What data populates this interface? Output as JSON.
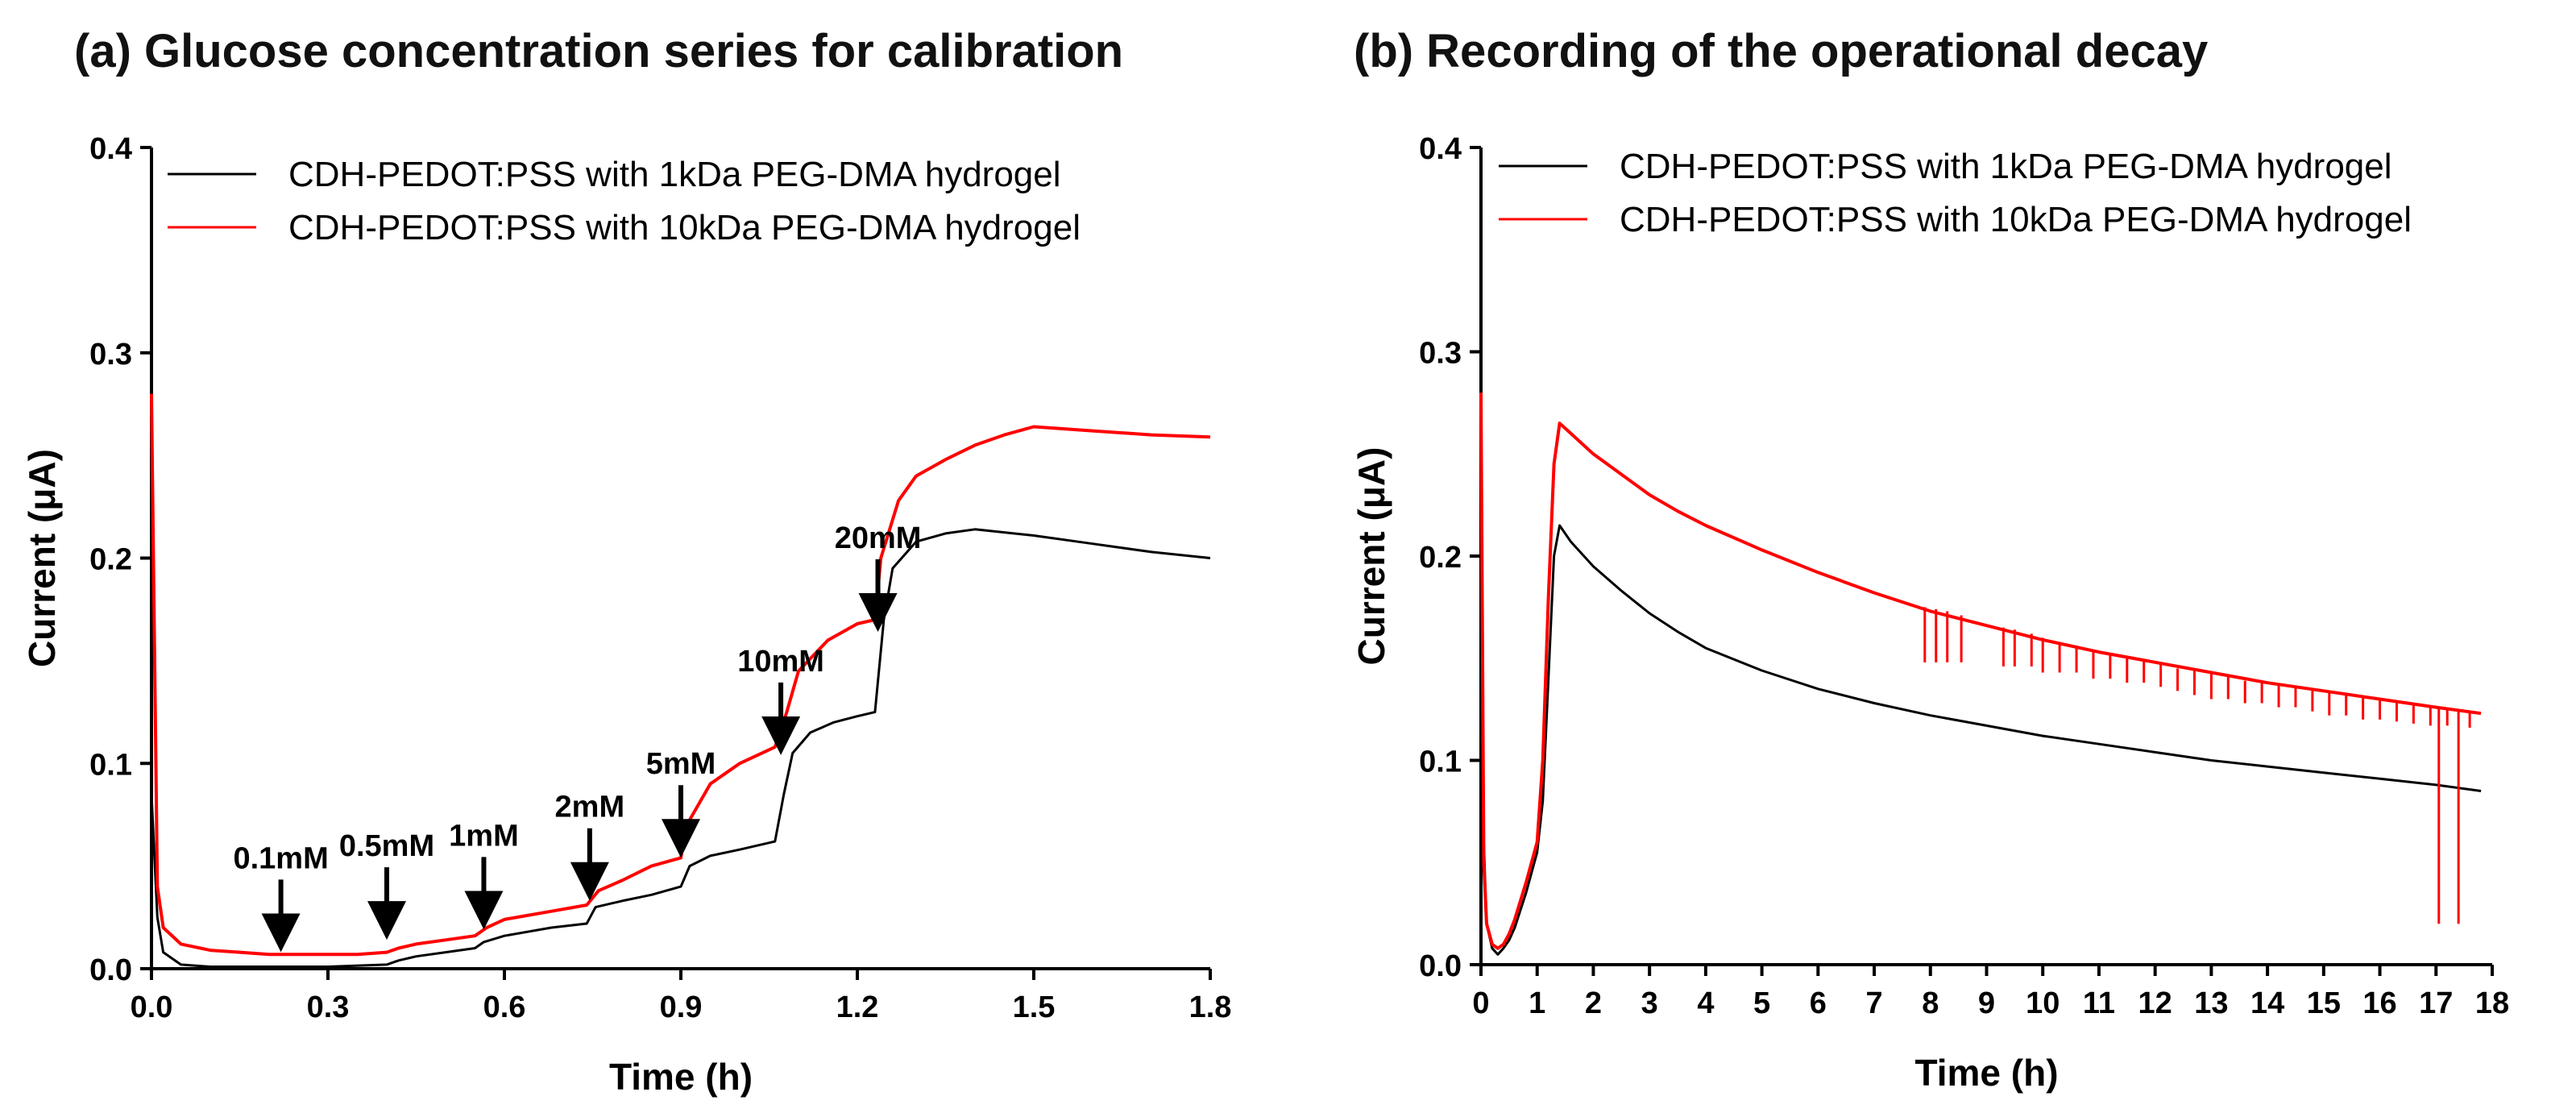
{
  "chart_data": [
    {
      "type": "line",
      "title": "(a) Glucose concentration series for calibration",
      "xlabel": "Time (h)",
      "ylabel": "Current (μA)",
      "xlim": [
        0,
        1.8
      ],
      "ylim": [
        0,
        0.4
      ],
      "xticks": [
        "0.0",
        "0.3",
        "0.6",
        "0.9",
        "1.2",
        "1.5",
        "1.8"
      ],
      "yticks": [
        "0.0",
        "0.1",
        "0.2",
        "0.3",
        "0.4"
      ],
      "legend_position": "top",
      "series": [
        {
          "name": "CDH-PEDOT:PSS with 1kDa PEG-DMA hydrogel",
          "color": "#000000",
          "x": [
            0.0,
            0.01,
            0.02,
            0.05,
            0.1,
            0.2,
            0.3,
            0.4,
            0.42,
            0.45,
            0.5,
            0.55,
            0.565,
            0.6,
            0.68,
            0.74,
            0.755,
            0.8,
            0.85,
            0.9,
            0.915,
            0.95,
            1.0,
            1.06,
            1.075,
            1.09,
            1.12,
            1.16,
            1.2,
            1.23,
            1.245,
            1.26,
            1.3,
            1.35,
            1.4,
            1.5,
            1.6,
            1.7,
            1.8
          ],
          "y": [
            0.085,
            0.025,
            0.008,
            0.002,
            0.001,
            0.001,
            0.001,
            0.002,
            0.004,
            0.006,
            0.008,
            0.01,
            0.013,
            0.016,
            0.02,
            0.022,
            0.03,
            0.033,
            0.036,
            0.04,
            0.05,
            0.055,
            0.058,
            0.062,
            0.085,
            0.105,
            0.115,
            0.12,
            0.123,
            0.125,
            0.17,
            0.195,
            0.208,
            0.212,
            0.214,
            0.211,
            0.207,
            0.203,
            0.2
          ]
        },
        {
          "name": "CDH-PEDOT:PSS with 10kDa PEG-DMA hydrogel",
          "color": "#ff0000",
          "x": [
            0.0,
            0.01,
            0.02,
            0.05,
            0.1,
            0.15,
            0.2,
            0.25,
            0.3,
            0.35,
            0.4,
            0.42,
            0.45,
            0.5,
            0.55,
            0.57,
            0.6,
            0.68,
            0.74,
            0.76,
            0.8,
            0.85,
            0.9,
            0.91,
            0.95,
            1.0,
            1.06,
            1.08,
            1.1,
            1.15,
            1.2,
            1.23,
            1.24,
            1.27,
            1.3,
            1.35,
            1.4,
            1.45,
            1.5,
            1.6,
            1.7,
            1.8
          ],
          "y": [
            0.28,
            0.04,
            0.02,
            0.012,
            0.009,
            0.008,
            0.007,
            0.007,
            0.007,
            0.007,
            0.008,
            0.01,
            0.012,
            0.014,
            0.016,
            0.02,
            0.024,
            0.028,
            0.031,
            0.038,
            0.043,
            0.05,
            0.054,
            0.07,
            0.09,
            0.1,
            0.108,
            0.125,
            0.145,
            0.16,
            0.168,
            0.17,
            0.2,
            0.228,
            0.24,
            0.248,
            0.255,
            0.26,
            0.264,
            0.262,
            0.26,
            0.259
          ]
        }
      ],
      "annotations": [
        {
          "label": "0.1mM",
          "x": 0.22,
          "y": 0.012
        },
        {
          "label": "0.5mM",
          "x": 0.4,
          "y": 0.018
        },
        {
          "label": "1mM",
          "x": 0.565,
          "y": 0.023
        },
        {
          "label": "2mM",
          "x": 0.745,
          "y": 0.037
        },
        {
          "label": "5mM",
          "x": 0.9,
          "y": 0.058
        },
        {
          "label": "10mM",
          "x": 1.07,
          "y": 0.108
        },
        {
          "label": "20mM",
          "x": 1.235,
          "y": 0.168
        }
      ]
    },
    {
      "type": "line",
      "title": "(b) Recording of the operational decay",
      "xlabel": "Time (h)",
      "ylabel": "Current (μA)",
      "xlim": [
        0,
        18
      ],
      "ylim": [
        0,
        0.4
      ],
      "xticks": [
        "0",
        "1",
        "2",
        "3",
        "4",
        "5",
        "6",
        "7",
        "8",
        "9",
        "10",
        "11",
        "12",
        "13",
        "14",
        "15",
        "16",
        "17",
        "18"
      ],
      "yticks": [
        "0.0",
        "0.1",
        "0.2",
        "0.3",
        "0.4"
      ],
      "legend_position": "top",
      "series": [
        {
          "name": "CDH-PEDOT:PSS with 1kDa PEG-DMA hydrogel",
          "color": "#000000",
          "x": [
            0.0,
            0.05,
            0.1,
            0.2,
            0.3,
            0.4,
            0.5,
            0.6,
            0.8,
            1.0,
            1.1,
            1.2,
            1.3,
            1.4,
            1.6,
            2.0,
            2.5,
            3.0,
            3.5,
            4.0,
            5.0,
            6.0,
            7.0,
            8.0,
            9.0,
            10.0,
            11.0,
            12.0,
            13.0,
            14.0,
            15.0,
            16.0,
            17.0,
            17.8
          ],
          "y": [
            0.25,
            0.06,
            0.02,
            0.008,
            0.005,
            0.008,
            0.012,
            0.018,
            0.035,
            0.055,
            0.08,
            0.14,
            0.2,
            0.215,
            0.207,
            0.195,
            0.183,
            0.172,
            0.163,
            0.155,
            0.144,
            0.135,
            0.128,
            0.122,
            0.117,
            0.112,
            0.108,
            0.104,
            0.1,
            0.097,
            0.094,
            0.091,
            0.088,
            0.085
          ]
        },
        {
          "name": "CDH-PEDOT:PSS with 10kDa PEG-DMA hydrogel",
          "color": "#ff0000",
          "x": [
            0.0,
            0.05,
            0.1,
            0.2,
            0.3,
            0.4,
            0.5,
            0.6,
            0.8,
            1.0,
            1.1,
            1.2,
            1.3,
            1.4,
            1.6,
            2.0,
            2.5,
            3.0,
            3.5,
            4.0,
            5.0,
            6.0,
            7.0,
            8.0,
            9.0,
            10.0,
            11.0,
            12.0,
            13.0,
            14.0,
            15.0,
            16.0,
            17.0,
            17.8
          ],
          "y": [
            0.28,
            0.05,
            0.02,
            0.01,
            0.008,
            0.01,
            0.015,
            0.022,
            0.04,
            0.06,
            0.1,
            0.18,
            0.245,
            0.265,
            0.26,
            0.25,
            0.24,
            0.23,
            0.222,
            0.215,
            0.203,
            0.192,
            0.182,
            0.173,
            0.166,
            0.159,
            0.153,
            0.148,
            0.143,
            0.138,
            0.134,
            0.13,
            0.126,
            0.123
          ]
        }
      ],
      "spikes": [
        {
          "x": 7.9,
          "y0": 0.175,
          "y1": 0.148
        },
        {
          "x": 8.1,
          "y0": 0.174,
          "y1": 0.148
        },
        {
          "x": 8.3,
          "y0": 0.173,
          "y1": 0.148
        },
        {
          "x": 8.55,
          "y0": 0.171,
          "y1": 0.148
        },
        {
          "x": 9.3,
          "y0": 0.165,
          "y1": 0.146
        },
        {
          "x": 9.5,
          "y0": 0.164,
          "y1": 0.146
        },
        {
          "x": 9.8,
          "y0": 0.162,
          "y1": 0.146
        },
        {
          "x": 10.0,
          "y0": 0.16,
          "y1": 0.143
        },
        {
          "x": 10.3,
          "y0": 0.158,
          "y1": 0.143
        },
        {
          "x": 10.6,
          "y0": 0.156,
          "y1": 0.143
        },
        {
          "x": 10.9,
          "y0": 0.154,
          "y1": 0.14
        },
        {
          "x": 11.2,
          "y0": 0.152,
          "y1": 0.14
        },
        {
          "x": 11.5,
          "y0": 0.15,
          "y1": 0.138
        },
        {
          "x": 11.8,
          "y0": 0.149,
          "y1": 0.138
        },
        {
          "x": 12.1,
          "y0": 0.147,
          "y1": 0.136
        },
        {
          "x": 12.4,
          "y0": 0.145,
          "y1": 0.134
        },
        {
          "x": 12.7,
          "y0": 0.144,
          "y1": 0.132
        },
        {
          "x": 13.0,
          "y0": 0.143,
          "y1": 0.13
        },
        {
          "x": 13.3,
          "y0": 0.141,
          "y1": 0.13
        },
        {
          "x": 13.6,
          "y0": 0.139,
          "y1": 0.128
        },
        {
          "x": 13.9,
          "y0": 0.138,
          "y1": 0.128
        },
        {
          "x": 14.2,
          "y0": 0.137,
          "y1": 0.126
        },
        {
          "x": 14.5,
          "y0": 0.136,
          "y1": 0.126
        },
        {
          "x": 14.8,
          "y0": 0.134,
          "y1": 0.124
        },
        {
          "x": 15.1,
          "y0": 0.133,
          "y1": 0.122
        },
        {
          "x": 15.4,
          "y0": 0.132,
          "y1": 0.122
        },
        {
          "x": 15.7,
          "y0": 0.131,
          "y1": 0.12
        },
        {
          "x": 16.0,
          "y0": 0.13,
          "y1": 0.12
        },
        {
          "x": 16.3,
          "y0": 0.129,
          "y1": 0.119
        },
        {
          "x": 16.6,
          "y0": 0.128,
          "y1": 0.118
        },
        {
          "x": 16.9,
          "y0": 0.127,
          "y1": 0.117
        },
        {
          "x": 17.05,
          "y0": 0.126,
          "y1": 0.02
        },
        {
          "x": 17.2,
          "y0": 0.125,
          "y1": 0.117
        },
        {
          "x": 17.4,
          "y0": 0.124,
          "y1": 0.02
        },
        {
          "x": 17.6,
          "y0": 0.124,
          "y1": 0.116
        }
      ]
    }
  ]
}
